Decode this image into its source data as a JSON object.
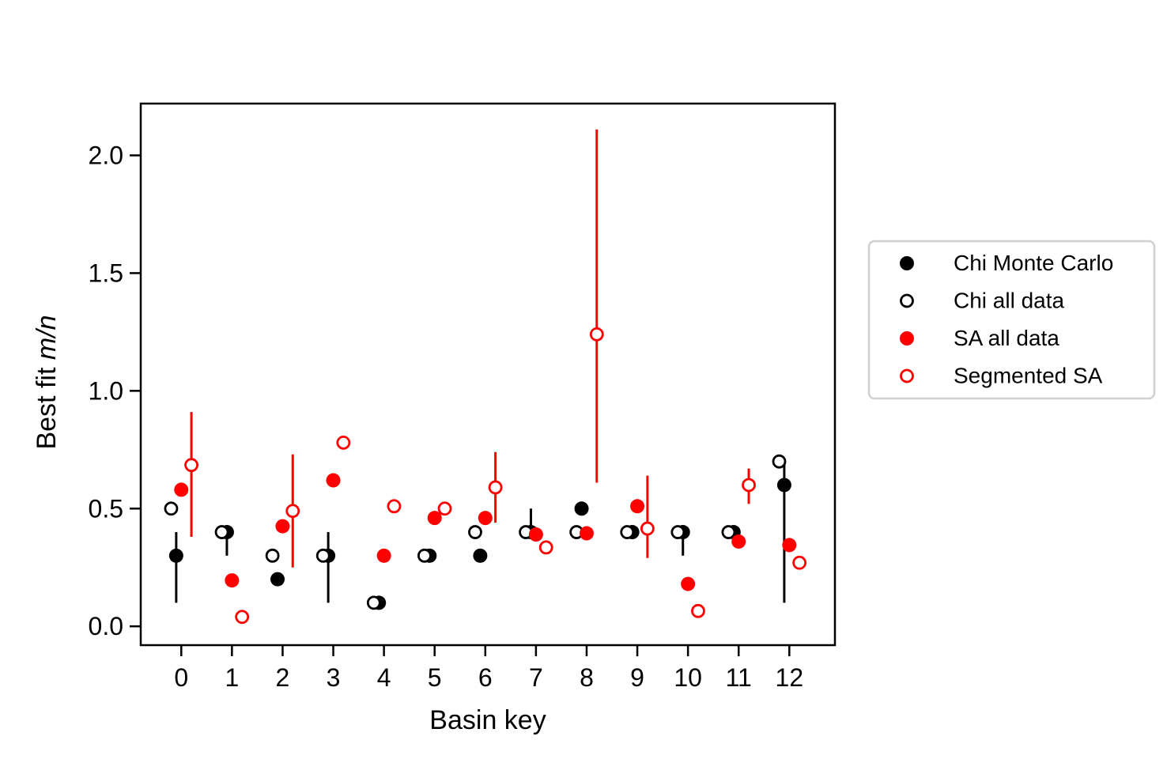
{
  "chart_data": {
    "type": "scatter",
    "xlabel": "Basin key",
    "ylabel_prefix": "Best fit ",
    "ylabel_italic": "m/n",
    "xlim": [
      -0.8,
      12.9
    ],
    "ylim": [
      -0.08,
      2.22
    ],
    "x_ticks": [
      0,
      1,
      2,
      3,
      4,
      5,
      6,
      7,
      8,
      9,
      10,
      11,
      12
    ],
    "x_tick_labels": [
      "0",
      "1",
      "2",
      "3",
      "4",
      "5",
      "6",
      "7",
      "8",
      "9",
      "10",
      "11",
      "12"
    ],
    "y_ticks": [
      0.0,
      0.5,
      1.0,
      1.5,
      2.0
    ],
    "y_tick_labels": [
      "0.0",
      "0.5",
      "1.0",
      "1.5",
      "2.0"
    ],
    "grid": false,
    "legend_position": "right-outside",
    "series": [
      {
        "name": "Chi Monte Carlo",
        "marker": "filled",
        "color": "#000000",
        "x_offset": -0.1,
        "y": [
          0.3,
          0.4,
          0.2,
          0.3,
          0.1,
          0.3,
          0.3,
          0.4,
          0.5,
          0.4,
          0.4,
          0.4,
          0.6
        ],
        "err_lo": [
          0.1,
          0.3,
          0.2,
          0.1,
          0.1,
          0.3,
          0.3,
          0.4,
          0.5,
          0.4,
          0.3,
          0.4,
          0.1
        ],
        "err_hi": [
          0.4,
          0.4,
          0.2,
          0.4,
          0.1,
          0.3,
          0.3,
          0.5,
          0.5,
          0.4,
          0.4,
          0.4,
          0.7
        ]
      },
      {
        "name": "Chi all data",
        "marker": "open",
        "color": "#000000",
        "x_offset": -0.2,
        "y": [
          0.5,
          0.4,
          0.3,
          0.3,
          0.1,
          0.3,
          0.4,
          0.4,
          0.4,
          0.4,
          0.4,
          0.4,
          0.7
        ]
      },
      {
        "name": "SA all data",
        "marker": "filled",
        "color": "#ff0000",
        "x_offset": 0.0,
        "y": [
          0.58,
          0.195,
          0.425,
          0.62,
          0.3,
          0.46,
          0.46,
          0.39,
          0.395,
          0.51,
          0.18,
          0.36,
          0.345
        ]
      },
      {
        "name": "Segmented SA",
        "marker": "open",
        "color": "#ff0000",
        "x_offset": 0.2,
        "y": [
          0.685,
          0.04,
          0.49,
          0.78,
          0.51,
          0.5,
          0.59,
          0.335,
          1.24,
          0.415,
          0.065,
          0.6,
          0.27
        ],
        "err_lo": [
          0.38,
          null,
          0.25,
          null,
          null,
          null,
          0.44,
          null,
          0.61,
          0.29,
          null,
          0.52,
          null
        ],
        "err_hi": [
          0.91,
          null,
          0.73,
          null,
          null,
          null,
          0.74,
          null,
          2.11,
          0.64,
          null,
          0.67,
          null
        ]
      }
    ]
  }
}
